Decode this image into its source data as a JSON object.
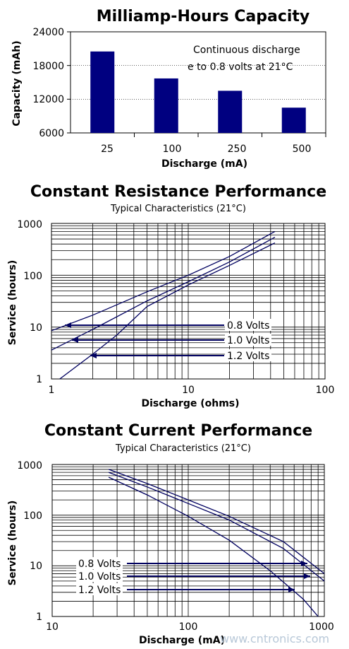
{
  "chart_data": [
    {
      "type": "bar",
      "title": "Milliamp-Hours Capacity",
      "xlabel": "Discharge (mA)",
      "ylabel": "Capacity (mAh)",
      "categories": [
        "25",
        "100",
        "250",
        "500"
      ],
      "values": [
        20500,
        15700,
        13500,
        10500
      ],
      "ylim": [
        6000,
        24000
      ],
      "yticks": [
        "24000",
        "18000",
        "12000",
        "6000"
      ],
      "annotation": [
        "Continuous discharge",
        "e to 0.8 volts at 21°C"
      ],
      "bar_color": "#000080"
    },
    {
      "type": "line",
      "title": "Constant Resistance Performance",
      "subtitle": "Typical Characteristics (21°C)",
      "xlabel": "Discharge (ohms)",
      "ylabel": "Service (hours)",
      "x_scale": "log",
      "y_scale": "log",
      "xlim": [
        1,
        100
      ],
      "ylim": [
        1,
        1000
      ],
      "xticks": [
        "1",
        "10",
        "100"
      ],
      "yticks": [
        "1000",
        "100",
        "10",
        "1"
      ],
      "series": [
        {
          "name": "0.8 Volts",
          "points": [
            [
              1,
              8.5
            ],
            [
              2,
              17
            ],
            [
              5,
              48
            ],
            [
              10,
              100
            ],
            [
              20,
              230
            ],
            [
              43,
              700
            ]
          ]
        },
        {
          "name": "1.0 Volts",
          "points": [
            [
              1,
              3.6
            ],
            [
              2,
              9
            ],
            [
              5,
              32
            ],
            [
              10,
              75
            ],
            [
              20,
              180
            ],
            [
              43,
              540
            ]
          ]
        },
        {
          "name": "1.2 Volts",
          "points": [
            [
              1.15,
              1
            ],
            [
              2,
              3
            ],
            [
              3,
              7
            ],
            [
              5,
              25
            ],
            [
              10,
              65
            ],
            [
              20,
              155
            ],
            [
              43,
              420
            ]
          ]
        }
      ],
      "line_color": "#000060"
    },
    {
      "type": "line",
      "title": "Constant Current Performance",
      "subtitle": "Typical Characteristics (21°C)",
      "xlabel": "Discharge (mA)",
      "ylabel": "Service (hours)",
      "x_scale": "log",
      "y_scale": "log",
      "xlim": [
        10,
        1000
      ],
      "ylim": [
        1,
        1000
      ],
      "xticks": [
        "10",
        "100",
        "1000"
      ],
      "yticks": [
        "1000",
        "100",
        "10",
        "1"
      ],
      "series": [
        {
          "name": "0.8 Volts",
          "points": [
            [
              26,
              800
            ],
            [
              50,
              420
            ],
            [
              100,
              200
            ],
            [
              200,
              95
            ],
            [
              500,
              30
            ],
            [
              1000,
              7
            ]
          ]
        },
        {
          "name": "1.0 Volts",
          "points": [
            [
              26,
              700
            ],
            [
              50,
              360
            ],
            [
              100,
              170
            ],
            [
              200,
              80
            ],
            [
              500,
              22
            ],
            [
              1000,
              5
            ]
          ]
        },
        {
          "name": "1.2 Volts",
          "points": [
            [
              26,
              560
            ],
            [
              50,
              250
            ],
            [
              100,
              95
            ],
            [
              200,
              32
            ],
            [
              400,
              8
            ],
            [
              700,
              2.2
            ],
            [
              900,
              1
            ]
          ]
        }
      ],
      "line_color": "#000060"
    }
  ],
  "watermark": "www.cntronics.com"
}
